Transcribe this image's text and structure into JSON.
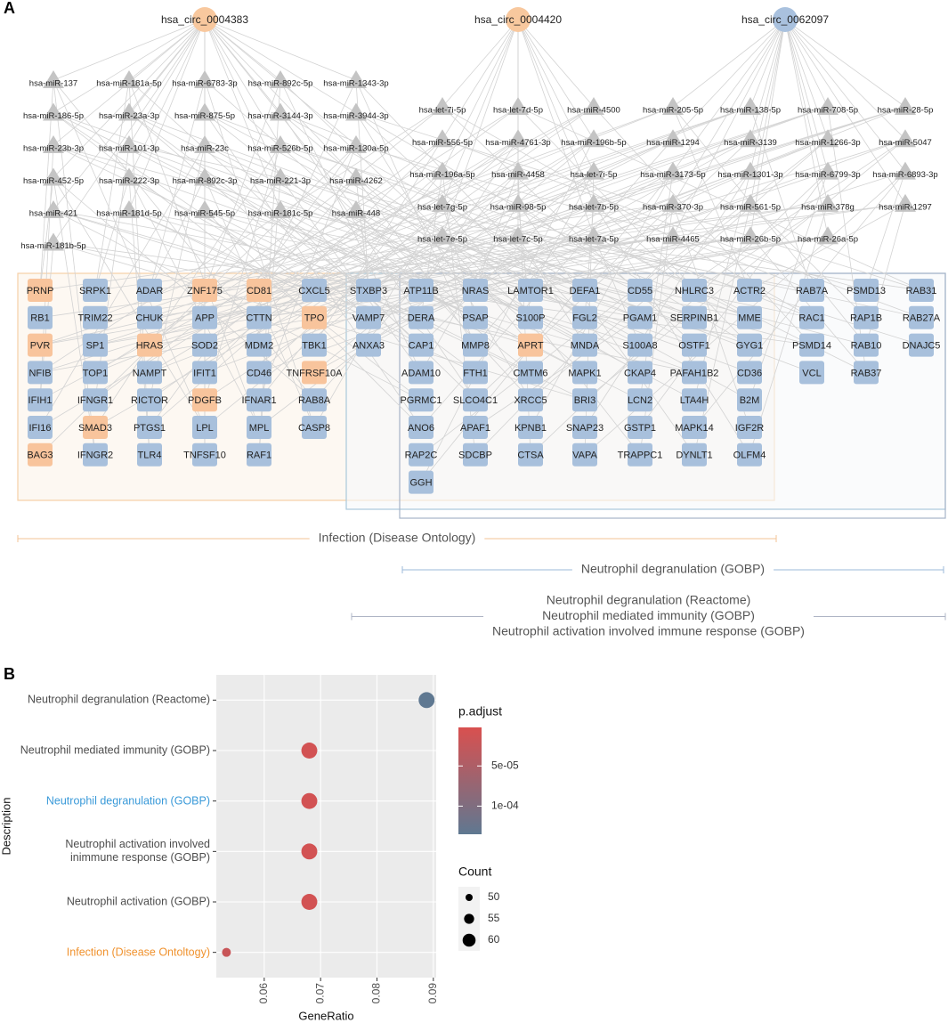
{
  "panel_a": {
    "label": "A",
    "circrnas": [
      {
        "label": "hsa_circ_0004383",
        "color": "#f8c89e"
      },
      {
        "label": "hsa_circ_0004420",
        "color": "#f8c89e"
      },
      {
        "label": "hsa_circ_0062097",
        "color": "#a9c1de"
      }
    ],
    "mirna_groups": [
      [
        [
          "hsa-miR-137",
          "hsa-miR-181a-5p",
          "hsa-miR-6783-3p",
          "hsa-miR-892c-5p",
          "hsa-miR-1343-3p"
        ],
        [
          "hsa-miR-186-5p",
          "hsa-miR-23a-3p",
          "hsa-miR-875-5p",
          "hsa-miR-3144-3p",
          "hsa-miR-3944-3p"
        ],
        [
          "hsa-miR-23b-3p",
          "hsa-miR-101-3p",
          "hsa-miR-23c",
          "hsa-miR-526b-5p",
          "hsa-miR-130a-5p"
        ],
        [
          "hsa-miR-452-5p",
          "hsa-miR-222-3p",
          "hsa-miR-892c-3p",
          "hsa-miR-221-3p",
          "hsa-miR-4262"
        ],
        [
          "hsa-miR-421",
          "hsa-miR-181d-5p",
          "hsa-miR-545-5p",
          "hsa-miR-181c-5p",
          "hsa-miR-448"
        ],
        [
          "hsa-miR-181b-5p"
        ]
      ],
      [
        [
          "hsa-let-7i-5p",
          "hsa-let-7d-5p",
          "hsa-miR-4500"
        ],
        [
          "hsa-miR-556-5p",
          "hsa-miR-4761-3p",
          "hsa-miR-196b-5p"
        ],
        [
          "hsa-miR-196a-5p",
          "hsa-miR-4458",
          "hsa-let-7i-5p"
        ],
        [
          "hsa-let-7g-5p",
          "hsa-miR-98-5p",
          "hsa-let-7b-5p"
        ],
        [
          "hsa-let-7e-5p",
          "hsa-let-7c-5p",
          "hsa-let-7a-5p"
        ]
      ],
      [
        [
          "hsa-miR-205-5p",
          "hsa-miR-138-5p",
          "hsa-miR-708-5p",
          "hsa-miR-28-5p"
        ],
        [
          "hsa-miR-1294",
          "hsa-miR-3139",
          "hsa-miR-1266-3p",
          "hsa-miR-5047"
        ],
        [
          "hsa-miR-3173-5p",
          "hsa-miR-1301-3p",
          "hsa-miR-6799-3p",
          "hsa-miR-6893-3p"
        ],
        [
          "hsa-miR-370-3p",
          "hsa-miR-561-5p",
          "hsa-miR-378g",
          "hsa-miR-1297"
        ],
        [
          "hsa-miR-4465",
          "hsa-miR-26b-5p",
          "hsa-miR-26a-5p"
        ]
      ]
    ],
    "genes": [
      [
        {
          "label": "PRNP",
          "color": "#f8c49c"
        },
        {
          "label": "RB1",
          "color": "#a8c0dc"
        },
        {
          "label": "PVR",
          "color": "#f8c49c"
        },
        {
          "label": "NFIB",
          "color": "#a8c0dc"
        },
        {
          "label": "IFIH1",
          "color": "#a8c0dc"
        },
        {
          "label": "IFI16",
          "color": "#a8c0dc"
        },
        {
          "label": "BAG3",
          "color": "#f8c49c"
        }
      ],
      [
        {
          "label": "SRPK1",
          "color": "#a8c0dc"
        },
        {
          "label": "TRIM22",
          "color": "#a8c0dc"
        },
        {
          "label": "SP1",
          "color": "#a8c0dc"
        },
        {
          "label": "TOP1",
          "color": "#a8c0dc"
        },
        {
          "label": "IFNGR1",
          "color": "#a8c0dc"
        },
        {
          "label": "SMAD3",
          "color": "#f8c49c"
        },
        {
          "label": "IFNGR2",
          "color": "#a8c0dc"
        }
      ],
      [
        {
          "label": "ADAR",
          "color": "#a8c0dc"
        },
        {
          "label": "CHUK",
          "color": "#a8c0dc"
        },
        {
          "label": "HRAS",
          "color": "#f8c49c"
        },
        {
          "label": "NAMPT",
          "color": "#a8c0dc"
        },
        {
          "label": "RICTOR",
          "color": "#a8c0dc"
        },
        {
          "label": "PTGS1",
          "color": "#a8c0dc"
        },
        {
          "label": "TLR4",
          "color": "#a8c0dc"
        }
      ],
      [
        {
          "label": "ZNF175",
          "color": "#f8c49c"
        },
        {
          "label": "APP",
          "color": "#a8c0dc"
        },
        {
          "label": "SOD2",
          "color": "#a8c0dc"
        },
        {
          "label": "IFIT1",
          "color": "#a8c0dc"
        },
        {
          "label": "PDGFB",
          "color": "#f8c49c"
        },
        {
          "label": "LPL",
          "color": "#a8c0dc"
        },
        {
          "label": "TNFSF10",
          "color": "#a8c0dc"
        }
      ],
      [
        {
          "label": "CD81",
          "color": "#f8c49c"
        },
        {
          "label": "CTTN",
          "color": "#a8c0dc"
        },
        {
          "label": "MDM2",
          "color": "#a8c0dc"
        },
        {
          "label": "CD46",
          "color": "#a8c0dc"
        },
        {
          "label": "IFNAR1",
          "color": "#a8c0dc"
        },
        {
          "label": "MPL",
          "color": "#a8c0dc"
        },
        {
          "label": "RAF1",
          "color": "#a8c0dc"
        }
      ],
      [
        {
          "label": "CXCL5",
          "color": "#a8c0dc"
        },
        {
          "label": "TPO",
          "color": "#f8c49c"
        },
        {
          "label": "TBK1",
          "color": "#a8c0dc"
        },
        {
          "label": "TNFRSF10A",
          "color": "#f8c49c"
        },
        {
          "label": "RAB8A",
          "color": "#a8c0dc"
        },
        {
          "label": "CASP8",
          "color": "#a8c0dc"
        }
      ],
      [
        {
          "label": "STXBP3",
          "color": "#a8c0dc"
        },
        {
          "label": "VAMP7",
          "color": "#a8c0dc"
        },
        {
          "label": "ANXA3",
          "color": "#a8c0dc"
        }
      ],
      [
        {
          "label": "ATP11B",
          "color": "#a8c0dc"
        },
        {
          "label": "DERA",
          "color": "#a8c0dc"
        },
        {
          "label": "CAP1",
          "color": "#a8c0dc"
        },
        {
          "label": "ADAM10",
          "color": "#a8c0dc"
        },
        {
          "label": "PGRMC1",
          "color": "#a8c0dc"
        },
        {
          "label": "ANO6",
          "color": "#a8c0dc"
        },
        {
          "label": "RAP2C",
          "color": "#a8c0dc"
        },
        {
          "label": "GGH",
          "color": "#a8c0dc"
        }
      ],
      [
        {
          "label": "NRAS",
          "color": "#a8c0dc"
        },
        {
          "label": "PSAP",
          "color": "#a8c0dc"
        },
        {
          "label": "MMP8",
          "color": "#a8c0dc"
        },
        {
          "label": "FTH1",
          "color": "#a8c0dc"
        },
        {
          "label": "SLCO4C1",
          "color": "#a8c0dc"
        },
        {
          "label": "APAF1",
          "color": "#a8c0dc"
        },
        {
          "label": "SDCBP",
          "color": "#a8c0dc"
        }
      ],
      [
        {
          "label": "LAMTOR1",
          "color": "#a8c0dc"
        },
        {
          "label": "S100P",
          "color": "#a8c0dc"
        },
        {
          "label": "APRT",
          "color": "#f8c49c"
        },
        {
          "label": "CMTM6",
          "color": "#a8c0dc"
        },
        {
          "label": "XRCC5",
          "color": "#a8c0dc"
        },
        {
          "label": "KPNB1",
          "color": "#a8c0dc"
        },
        {
          "label": "CTSA",
          "color": "#a8c0dc"
        }
      ],
      [
        {
          "label": "DEFA1",
          "color": "#a8c0dc"
        },
        {
          "label": "FGL2",
          "color": "#a8c0dc"
        },
        {
          "label": "MNDA",
          "color": "#a8c0dc"
        },
        {
          "label": "MAPK1",
          "color": "#a8c0dc"
        },
        {
          "label": "BRI3",
          "color": "#a8c0dc"
        },
        {
          "label": "SNAP23",
          "color": "#a8c0dc"
        },
        {
          "label": "VAPA",
          "color": "#a8c0dc"
        }
      ],
      [
        {
          "label": "CD55",
          "color": "#a8c0dc"
        },
        {
          "label": "PGAM1",
          "color": "#a8c0dc"
        },
        {
          "label": "S100A8",
          "color": "#a8c0dc"
        },
        {
          "label": "CKAP4",
          "color": "#a8c0dc"
        },
        {
          "label": "LCN2",
          "color": "#a8c0dc"
        },
        {
          "label": "GSTP1",
          "color": "#a8c0dc"
        },
        {
          "label": "TRAPPC1",
          "color": "#a8c0dc"
        }
      ],
      [
        {
          "label": "NHLRC3",
          "color": "#a8c0dc"
        },
        {
          "label": "SERPINB1",
          "color": "#a8c0dc"
        },
        {
          "label": "OSTF1",
          "color": "#a8c0dc"
        },
        {
          "label": "PAFAH1B2",
          "color": "#a8c0dc"
        },
        {
          "label": "LTA4H",
          "color": "#a8c0dc"
        },
        {
          "label": "MAPK14",
          "color": "#a8c0dc"
        },
        {
          "label": "DYNLT1",
          "color": "#a8c0dc"
        }
      ],
      [
        {
          "label": "ACTR2",
          "color": "#a8c0dc"
        },
        {
          "label": "MME",
          "color": "#a8c0dc"
        },
        {
          "label": "GYG1",
          "color": "#a8c0dc"
        },
        {
          "label": "CD36",
          "color": "#a8c0dc"
        },
        {
          "label": "B2M",
          "color": "#a8c0dc"
        },
        {
          "label": "IGF2R",
          "color": "#a8c0dc"
        },
        {
          "label": "OLFM4",
          "color": "#a8c0dc"
        }
      ],
      [
        {
          "label": "RAB7A",
          "color": "#a8c0dc"
        },
        {
          "label": "RAC1",
          "color": "#a8c0dc"
        },
        {
          "label": "PSMD14",
          "color": "#a8c0dc"
        },
        {
          "label": "VCL",
          "color": "#a8c0dc"
        }
      ],
      [
        {
          "label": "PSMD13",
          "color": "#a8c0dc"
        },
        {
          "label": "RAP1B",
          "color": "#a8c0dc"
        },
        {
          "label": "RAB10",
          "color": "#a8c0dc"
        },
        {
          "label": "RAB37",
          "color": "#a8c0dc"
        }
      ],
      [
        {
          "label": "RAB31",
          "color": "#a8c0dc"
        },
        {
          "label": "RAB27A",
          "color": "#a8c0dc"
        },
        {
          "label": "DNAJC5",
          "color": "#a8c0dc"
        }
      ]
    ],
    "annotations": [
      {
        "lines": [
          "Infection (Disease Ontology)"
        ],
        "color": "#f3c396"
      },
      {
        "lines": [
          "Neutrophil degranulation (GOBP)"
        ],
        "color": "#9bb9da"
      },
      {
        "lines": [
          "Neutrophil degranulation (Reactome)",
          "Neutrophil mediated immunity (GOBP)",
          "Neutrophil activation involved immune response (GOBP)"
        ],
        "color": "#aeb4c4"
      }
    ]
  },
  "chart_data": {
    "type": "dot",
    "panel_label": "B",
    "xlabel": "GeneRatio",
    "ylabel": "Description",
    "categories": [
      "Neutrophil degranulation (Reactome)",
      "Neutrophil mediated immunity (GOBP)",
      "Neutrophil degranulation (GOBP)",
      "Neutrophil activation involved\ninimmune response (GOBP)",
      "Neutrophil activation (GOBP)",
      "Infection (Disease Ontoltogy)"
    ],
    "category_colors": [
      "#4d4d4d",
      "#4d4d4d",
      "#3a9ad9",
      "#4d4d4d",
      "#4d4d4d",
      "#f0922e"
    ],
    "values": [
      0.0888,
      0.068,
      0.068,
      0.068,
      0.068,
      0.0533
    ],
    "sizes": [
      65,
      65,
      65,
      65,
      65,
      53
    ],
    "p_adjust": [
      0.000135,
      1e-05,
      1e-05,
      1e-05,
      1e-05,
      2e-05
    ],
    "xlim": [
      0.0515,
      0.0905
    ],
    "xticks": [
      0.06,
      0.07,
      0.08,
      0.09
    ],
    "color_legend_title": "p.adjust",
    "color_lim": [
      2e-06,
      0.000135
    ],
    "color_ticks": [
      {
        "value": 5e-05,
        "label": "5e-05"
      },
      {
        "value": 0.0001,
        "label": "1e-04"
      }
    ],
    "color_low": "#d9504f",
    "color_high": "#5f7891",
    "size_legend_title": "Count",
    "size_ticks": [
      50,
      55,
      60
    ]
  }
}
